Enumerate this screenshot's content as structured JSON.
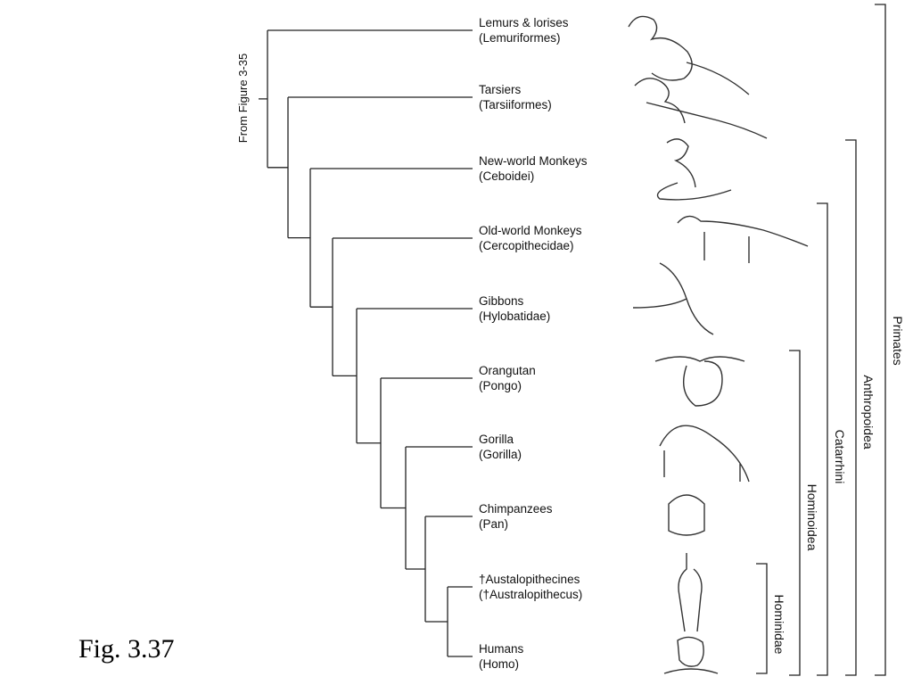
{
  "figure_caption": "Fig. 3.37",
  "root_label": "From Figure 3-35",
  "taxa": [
    {
      "common": "Lemurs & lorises",
      "scientific": "(Lemuriformes)"
    },
    {
      "common": "Tarsiers",
      "scientific": "(Tarsiiformes)"
    },
    {
      "common": "New-world Monkeys",
      "scientific": "(Ceboidei)"
    },
    {
      "common": "Old-world Monkeys",
      "scientific": "(Cercopithecidae)"
    },
    {
      "common": "Gibbons",
      "scientific": "(Hylobatidae)"
    },
    {
      "common": "Orangutan",
      "scientific": "(Pongo)"
    },
    {
      "common": "Gorilla",
      "scientific": "(Gorilla)"
    },
    {
      "common": "Chimpanzees",
      "scientific": "(Pan)"
    },
    {
      "common": "†Austalopithecines",
      "scientific": "(†Australopithecus)"
    },
    {
      "common": "Humans",
      "scientific": "(Homo)"
    }
  ],
  "clades": [
    {
      "label": "Hominidae"
    },
    {
      "label": "Hominoidea"
    },
    {
      "label": "Catarrhini"
    },
    {
      "label": "Anthropoidea"
    },
    {
      "label": "Primates"
    }
  ]
}
